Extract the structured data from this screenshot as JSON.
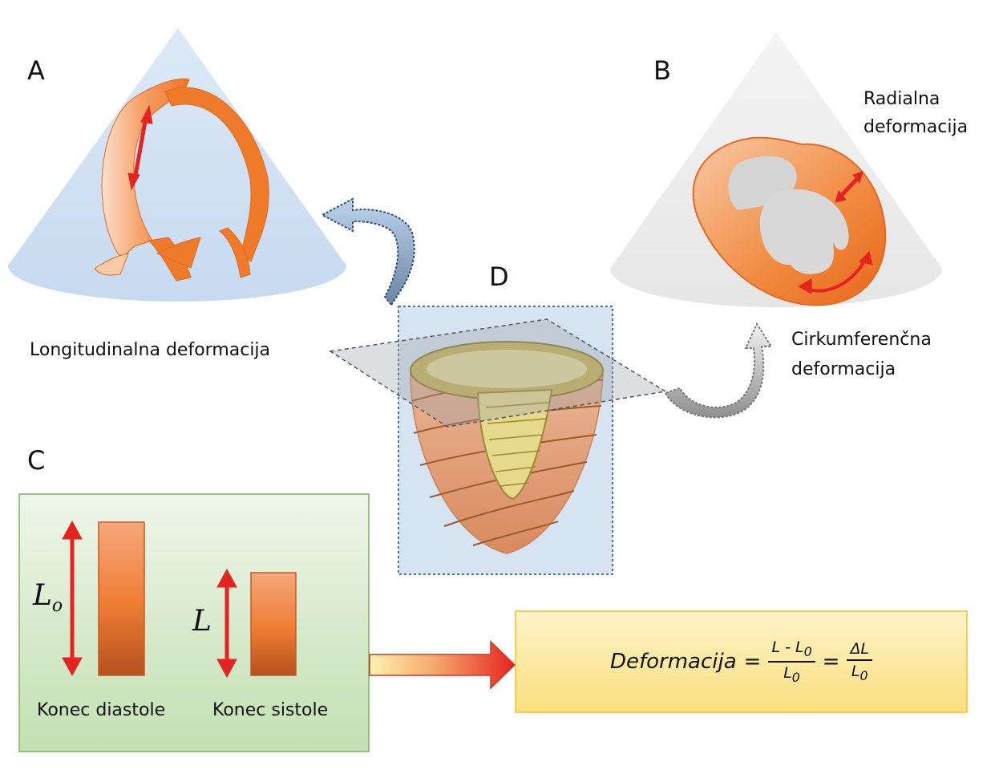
{
  "panels": {
    "a": {
      "letter": "A",
      "caption": "Longitudinalna deformacija"
    },
    "b": {
      "letter": "B",
      "label_radial": [
        "Radialna",
        "deformacija"
      ],
      "label_circ": [
        "Cirkumferenčna",
        "deformacija"
      ]
    },
    "c": {
      "letter": "C",
      "end_diastole": "Konec diastole",
      "end_systole": "Konec sistole",
      "length_initial": "L",
      "length_initial_sub": "o",
      "length_final": "L"
    },
    "d": {
      "letter": "D"
    }
  },
  "formula": {
    "word": "Deformacija",
    "equals": "=",
    "frac1_num": "L - L",
    "frac1_num_sub": "0",
    "frac1_den": "L",
    "frac1_den_sub": "0",
    "frac2_num": "ΔL",
    "frac2_den": "L",
    "frac2_den_sub": "0"
  },
  "colors": {
    "orange": "#ee7a2a",
    "red_arrow": "#e52421",
    "blue_fan": "#cfe0f2",
    "grey_fan": "#ececec",
    "green_box": "#cfe6c0",
    "yellow_box": "#fbe89a"
  }
}
